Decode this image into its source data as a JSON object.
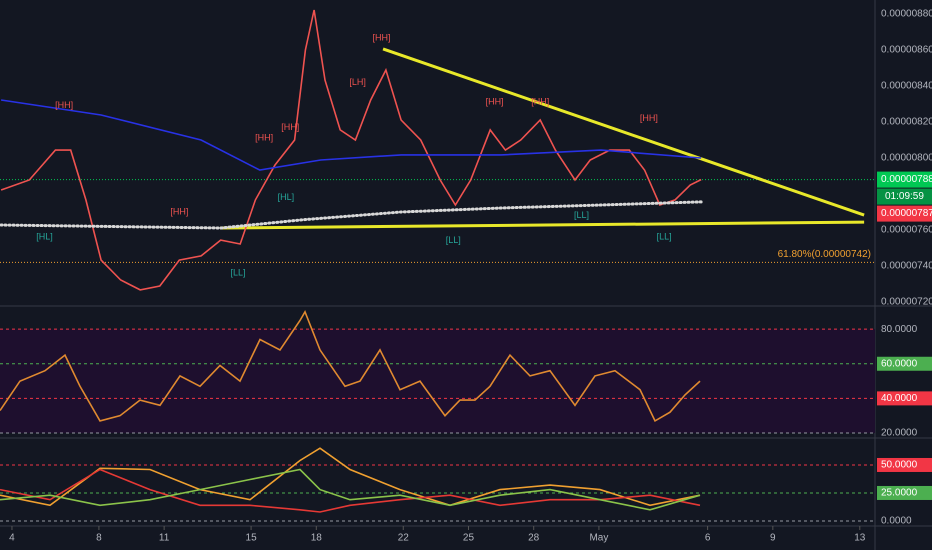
{
  "chart_data": [
    {
      "type": "line",
      "ylim": [
        7.1833e-06,
        8.8778e-06
      ],
      "xlim": [
        3.45,
        43.7
      ],
      "yticks": [
        {
          "value": 8.8e-06,
          "label": "0.00000880"
        },
        {
          "value": 8.6e-06,
          "label": "0.00000860"
        },
        {
          "value": 8.4e-06,
          "label": "0.00000840"
        },
        {
          "value": 8.2e-06,
          "label": "0.00000820"
        },
        {
          "value": 8e-06,
          "label": "0.00000800"
        },
        {
          "value": 7.6e-06,
          "label": "0.00000760"
        },
        {
          "value": 7.4e-06,
          "label": "0.00000740"
        },
        {
          "value": 7.2e-06,
          "label": "0.00000720"
        }
      ],
      "series": [
        {
          "color": "#ef5350",
          "x": [
            3.5,
            4.8,
            6.0,
            6.7,
            7.4,
            8.1,
            9.0,
            9.9,
            10.8,
            11.7,
            12.7,
            13.6,
            14.5,
            15.2,
            16.1,
            17.0,
            17.5,
            17.9,
            18.4,
            19.1,
            19.8,
            20.5,
            21.2,
            21.9,
            22.8,
            23.7,
            24.4,
            25.1,
            26.0,
            26.7,
            27.4,
            28.3,
            29.0,
            29.9,
            30.6,
            31.5,
            32.4,
            33.1,
            33.8,
            34.5,
            35.2,
            35.7
          ],
          "values": [
            7.822e-06,
            7.878e-06,
            8.044e-06,
            8.044e-06,
            7.767e-06,
            7.433e-06,
            7.322e-06,
            7.267e-06,
            7.289e-06,
            7.433e-06,
            7.456e-06,
            7.544e-06,
            7.522e-06,
            7.767e-06,
            7.961e-06,
            8.1e-06,
            8.6e-06,
            8.822e-06,
            8.433e-06,
            8.156e-06,
            8.1e-06,
            8.322e-06,
            8.489e-06,
            8.211e-06,
            8.1e-06,
            7.878e-06,
            7.739e-06,
            7.878e-06,
            8.156e-06,
            8.044e-06,
            8.1e-06,
            8.211e-06,
            8.044e-06,
            7.878e-06,
            7.989e-06,
            8.044e-06,
            8.044e-06,
            7.933e-06,
            7.739e-06,
            7.767e-06,
            7.85e-06,
            7.88e-06
          ]
        },
        {
          "color": "#2832e6",
          "x": [
            3.5,
            8.1,
            12.7,
            15.4,
            18.2,
            21.9,
            26.5,
            31.1,
            35.7
          ],
          "values": [
            8.322e-06,
            8.239e-06,
            8.1e-06,
            7.933e-06,
            7.989e-06,
            8.017e-06,
            8.017e-06,
            8.044e-06,
            8e-06
          ]
        },
        {
          "color": "#d8d8d8",
          "dotted": true,
          "x": [
            3.5,
            13.6,
            17.3,
            21.9,
            26.5,
            31.1,
            35.7
          ],
          "values": [
            7.628e-06,
            7.611e-06,
            7.656e-06,
            7.7e-06,
            7.722e-06,
            7.739e-06,
            7.756e-06
          ]
        }
      ],
      "trendlines": [
        {
          "color": "#e8e82a",
          "x": [
            21.07,
            43.2
          ],
          "values": [
            8.606e-06,
            7.683e-06
          ]
        },
        {
          "color": "#e8e82a",
          "x": [
            13.57,
            43.2
          ],
          "values": [
            7.611e-06,
            7.644e-06
          ]
        }
      ],
      "annotations": [
        {
          "text": "[HH]",
          "x": 21.0,
          "y": 8.667e-06,
          "color": "#ef5350"
        },
        {
          "text": "[LH]",
          "x": 19.9,
          "y": 8.42e-06,
          "color": "#ef5350"
        },
        {
          "text": "[HH]",
          "x": 16.8,
          "y": 8.17e-06,
          "color": "#ef5350"
        },
        {
          "text": "[HH]",
          "x": 15.6,
          "y": 8.11e-06,
          "color": "#ef5350"
        },
        {
          "text": "[HH]",
          "x": 6.4,
          "y": 8.29e-06,
          "color": "#ef5350"
        },
        {
          "text": "[HH]",
          "x": 11.7,
          "y": 7.7e-06,
          "color": "#ef5350"
        },
        {
          "text": "[HH]",
          "x": 26.2,
          "y": 8.31e-06,
          "color": "#ef5350"
        },
        {
          "text": "[HH]",
          "x": 28.3,
          "y": 8.31e-06,
          "color": "#ef5350"
        },
        {
          "text": "[HH]",
          "x": 33.3,
          "y": 8.22e-06,
          "color": "#ef5350"
        },
        {
          "text": "[LL]",
          "x": 24.3,
          "y": 7.54e-06,
          "color": "#26a69a"
        },
        {
          "text": "[LL]",
          "x": 30.2,
          "y": 7.68e-06,
          "color": "#26a69a"
        },
        {
          "text": "[LL]",
          "x": 34.0,
          "y": 7.56e-06,
          "color": "#26a69a"
        },
        {
          "text": "[HL]",
          "x": 5.5,
          "y": 7.56e-06,
          "color": "#26a69a"
        },
        {
          "text": "[HL]",
          "x": 16.6,
          "y": 7.78e-06,
          "color": "#26a69a"
        },
        {
          "text": "[LL]",
          "x": 14.4,
          "y": 7.36e-06,
          "color": "#26a69a"
        }
      ],
      "fib": {
        "text": "61.80%(0.00000742)",
        "value": 7.42e-06,
        "color": "#f0a030"
      },
      "price_boxes": [
        {
          "value": 7.88e-06,
          "label": "0.00000788",
          "color": "#00c853"
        },
        {
          "value": 7.87e-06,
          "label": "0.00000787",
          "color": "#f23645"
        }
      ],
      "countdown": "01:09:59"
    },
    {
      "type": "line",
      "ylim": [
        17.7,
        92.2
      ],
      "xlim": [
        3.45,
        43.7
      ],
      "yticks": [
        {
          "value": 80,
          "label": "80.0000"
        },
        {
          "value": 60,
          "label": "60.0000"
        },
        {
          "value": 40,
          "label": "40.0000"
        },
        {
          "value": 20,
          "label": "20.0000"
        }
      ],
      "level_colors": [
        "#f23645",
        "#4caf50",
        "#f23645",
        "#9598a1"
      ],
      "label_boxes": [
        false,
        true,
        true,
        false
      ],
      "series": [
        {
          "color": "#e08a30",
          "x": [
            3.45,
            4.37,
            5.52,
            6.44,
            7.13,
            8.05,
            8.97,
            9.89,
            10.81,
            11.73,
            12.65,
            13.57,
            14.49,
            15.41,
            16.33,
            17.25,
            17.48,
            18.17,
            19.32,
            20.01,
            20.93,
            21.85,
            22.77,
            23.92,
            24.61,
            25.3,
            25.99,
            26.91,
            27.83,
            28.75,
            29.9,
            30.82,
            31.74,
            32.89,
            33.58,
            34.27,
            34.96,
            35.65
          ],
          "values": [
            33,
            50,
            56,
            65,
            47,
            27,
            30,
            39,
            36,
            53,
            47,
            59,
            50,
            74,
            68,
            85,
            90,
            68,
            47,
            50,
            68,
            45,
            50,
            30,
            39,
            39,
            47,
            65,
            53,
            56,
            36,
            53,
            56,
            45,
            27,
            32,
            42,
            50
          ]
        }
      ]
    },
    {
      "type": "line",
      "ylim": [
        -3.6,
        72.3
      ],
      "xlim": [
        3.45,
        43.7
      ],
      "yticks": [
        {
          "value": 50,
          "label": "50.0000"
        },
        {
          "value": 25,
          "label": "25.0000"
        },
        {
          "value": 0,
          "label": "0.0000"
        }
      ],
      "level_colors": [
        "#f23645",
        "#4caf50",
        "#9598a1"
      ],
      "label_boxes": [
        true,
        true,
        false
      ],
      "series": [
        {
          "color": "#f0a030",
          "x": [
            3.45,
            5.75,
            8.05,
            10.35,
            12.65,
            14.95,
            17.25,
            18.17,
            19.55,
            21.85,
            24.15,
            26.45,
            28.75,
            31.05,
            33.35,
            35.65
          ],
          "values": [
            23,
            14,
            47,
            46,
            28,
            19,
            54,
            65,
            46,
            28,
            14,
            28,
            32,
            28,
            14,
            23
          ]
        },
        {
          "color": "#e53935",
          "x": [
            3.45,
            5.75,
            8.05,
            10.35,
            12.65,
            14.95,
            17.25,
            18.17,
            19.55,
            21.85,
            24.15,
            26.45,
            28.75,
            31.05,
            33.35,
            35.65
          ],
          "values": [
            28,
            19,
            46,
            28,
            14,
            14,
            10,
            8,
            14,
            19,
            23,
            14,
            19,
            19,
            23,
            14
          ]
        },
        {
          "color": "#8bc34a",
          "x": [
            3.45,
            5.75,
            8.05,
            10.35,
            12.65,
            14.95,
            17.25,
            18.17,
            19.55,
            21.85,
            24.15,
            26.45,
            28.75,
            31.05,
            33.35,
            35.65
          ],
          "values": [
            19,
            23,
            14,
            19,
            28,
            37,
            46,
            28,
            19,
            23,
            14,
            23,
            28,
            19,
            10,
            23
          ]
        }
      ],
      "xticks": [
        4,
        8,
        11,
        15,
        18,
        22,
        25,
        28,
        {
          "value": 31,
          "label": "May"
        },
        {
          "value": 36,
          "label": "6"
        },
        {
          "value": 39,
          "label": "9"
        },
        {
          "value": 43,
          "label": "13"
        }
      ]
    }
  ]
}
